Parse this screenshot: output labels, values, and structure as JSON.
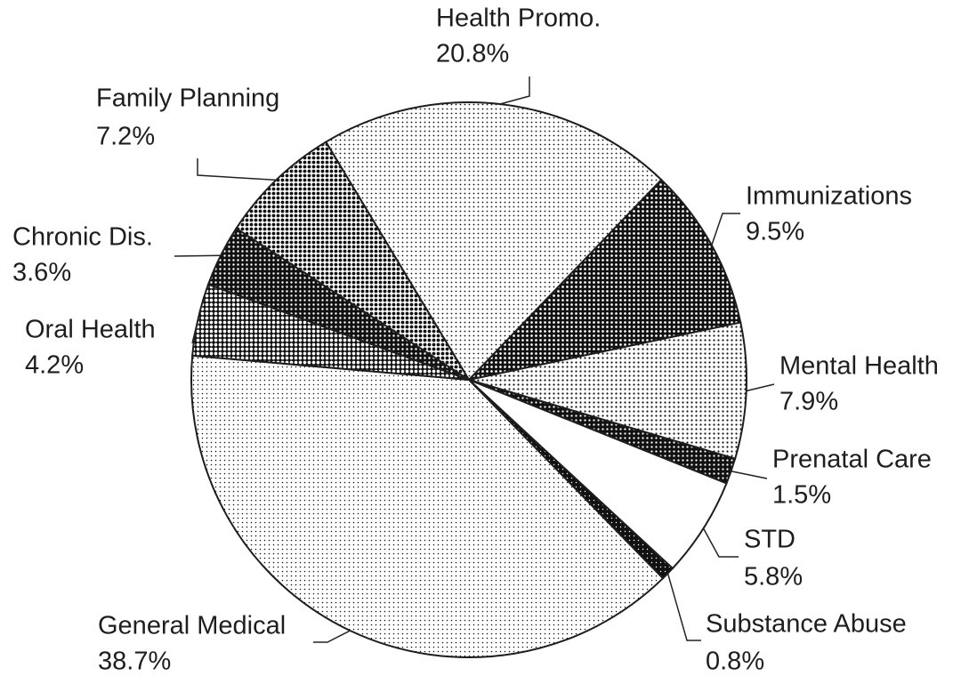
{
  "chart_data": {
    "type": "pie",
    "categories": [
      "Health Promo.",
      "Immunizations",
      "Mental Health",
      "Prenatal Care",
      "STD",
      "Substance Abuse",
      "General Medical",
      "Oral Health",
      "Chronic Dis.",
      "Family Planning"
    ],
    "values": [
      20.8,
      9.5,
      7.9,
      1.5,
      5.8,
      0.8,
      38.7,
      4.2,
      3.6,
      7.2
    ],
    "value_labels": [
      "20.8%",
      "9.5%",
      "7.9%",
      "1.5%",
      "5.8%",
      "0.8%",
      "38.7%",
      "4.2%",
      "3.6%",
      "7.2%"
    ],
    "colors": [
      "#e4e4e4",
      "#3a3a3a",
      "#d8d8d8",
      "#2a2a2a",
      "#ffffff",
      "#111111",
      "#ececec",
      "#6a6a6a",
      "#303030",
      "#8a8a8a"
    ]
  }
}
